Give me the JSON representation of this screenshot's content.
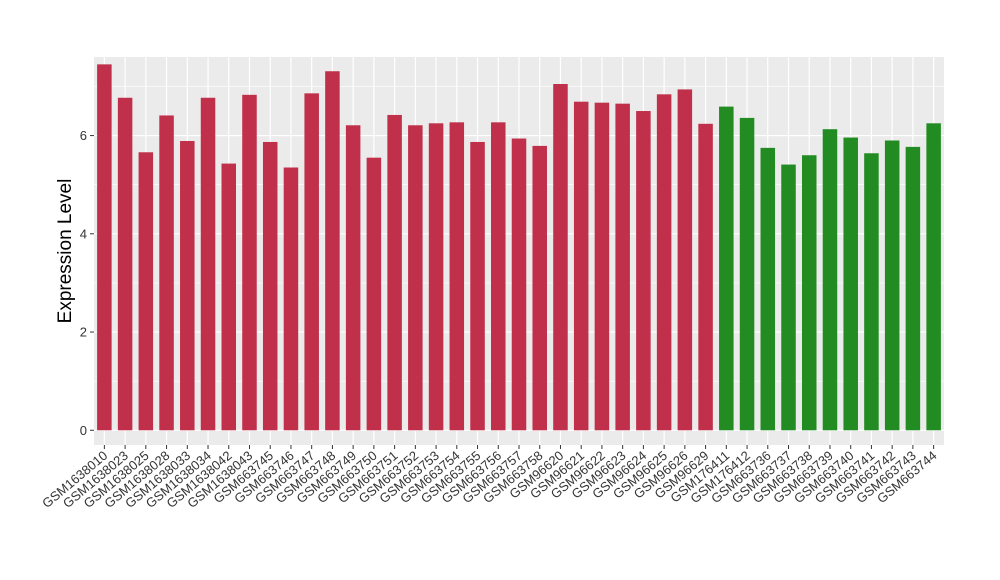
{
  "chart_data": {
    "type": "bar",
    "title": "",
    "xlabel": "",
    "ylabel": "Expression Level",
    "ylim": [
      -0.3,
      7.6
    ],
    "yticks": [
      0,
      2,
      4,
      6
    ],
    "grid": true,
    "colors": {
      "group_a": "#C0304A",
      "group_b": "#228B22",
      "panel": "#EBEBEB",
      "grid": "#FFFFFF"
    },
    "categories": [
      "GSM1638010",
      "GSM1638023",
      "GSM1638025",
      "GSM1638028",
      "GSM1638033",
      "GSM1638034",
      "GSM1638042",
      "GSM1638043",
      "GSM663745",
      "GSM663746",
      "GSM663747",
      "GSM663748",
      "GSM663749",
      "GSM663750",
      "GSM663751",
      "GSM663752",
      "GSM663753",
      "GSM663754",
      "GSM663755",
      "GSM663756",
      "GSM663757",
      "GSM663758",
      "GSM96620",
      "GSM96621",
      "GSM96622",
      "GSM96623",
      "GSM96624",
      "GSM96625",
      "GSM96626",
      "GSM96629",
      "GSM176411",
      "GSM176412",
      "GSM663736",
      "GSM663737",
      "GSM663738",
      "GSM663739",
      "GSM663740",
      "GSM663741",
      "GSM663742",
      "GSM663743",
      "GSM663744"
    ],
    "values": [
      7.45,
      6.77,
      5.66,
      6.41,
      5.89,
      6.77,
      5.43,
      6.83,
      5.87,
      5.35,
      6.86,
      7.31,
      6.21,
      5.55,
      6.42,
      6.21,
      6.25,
      6.27,
      5.87,
      6.27,
      5.94,
      5.79,
      7.05,
      6.69,
      6.67,
      6.65,
      6.5,
      6.84,
      6.94,
      6.24,
      6.59,
      6.36,
      5.75,
      5.41,
      5.6,
      6.13,
      5.96,
      5.64,
      5.9,
      5.77,
      6.25
    ],
    "groups": [
      "a",
      "a",
      "a",
      "a",
      "a",
      "a",
      "a",
      "a",
      "a",
      "a",
      "a",
      "a",
      "a",
      "a",
      "a",
      "a",
      "a",
      "a",
      "a",
      "a",
      "a",
      "a",
      "a",
      "a",
      "a",
      "a",
      "a",
      "a",
      "a",
      "a",
      "b",
      "b",
      "b",
      "b",
      "b",
      "b",
      "b",
      "b",
      "b",
      "b",
      "b"
    ]
  }
}
